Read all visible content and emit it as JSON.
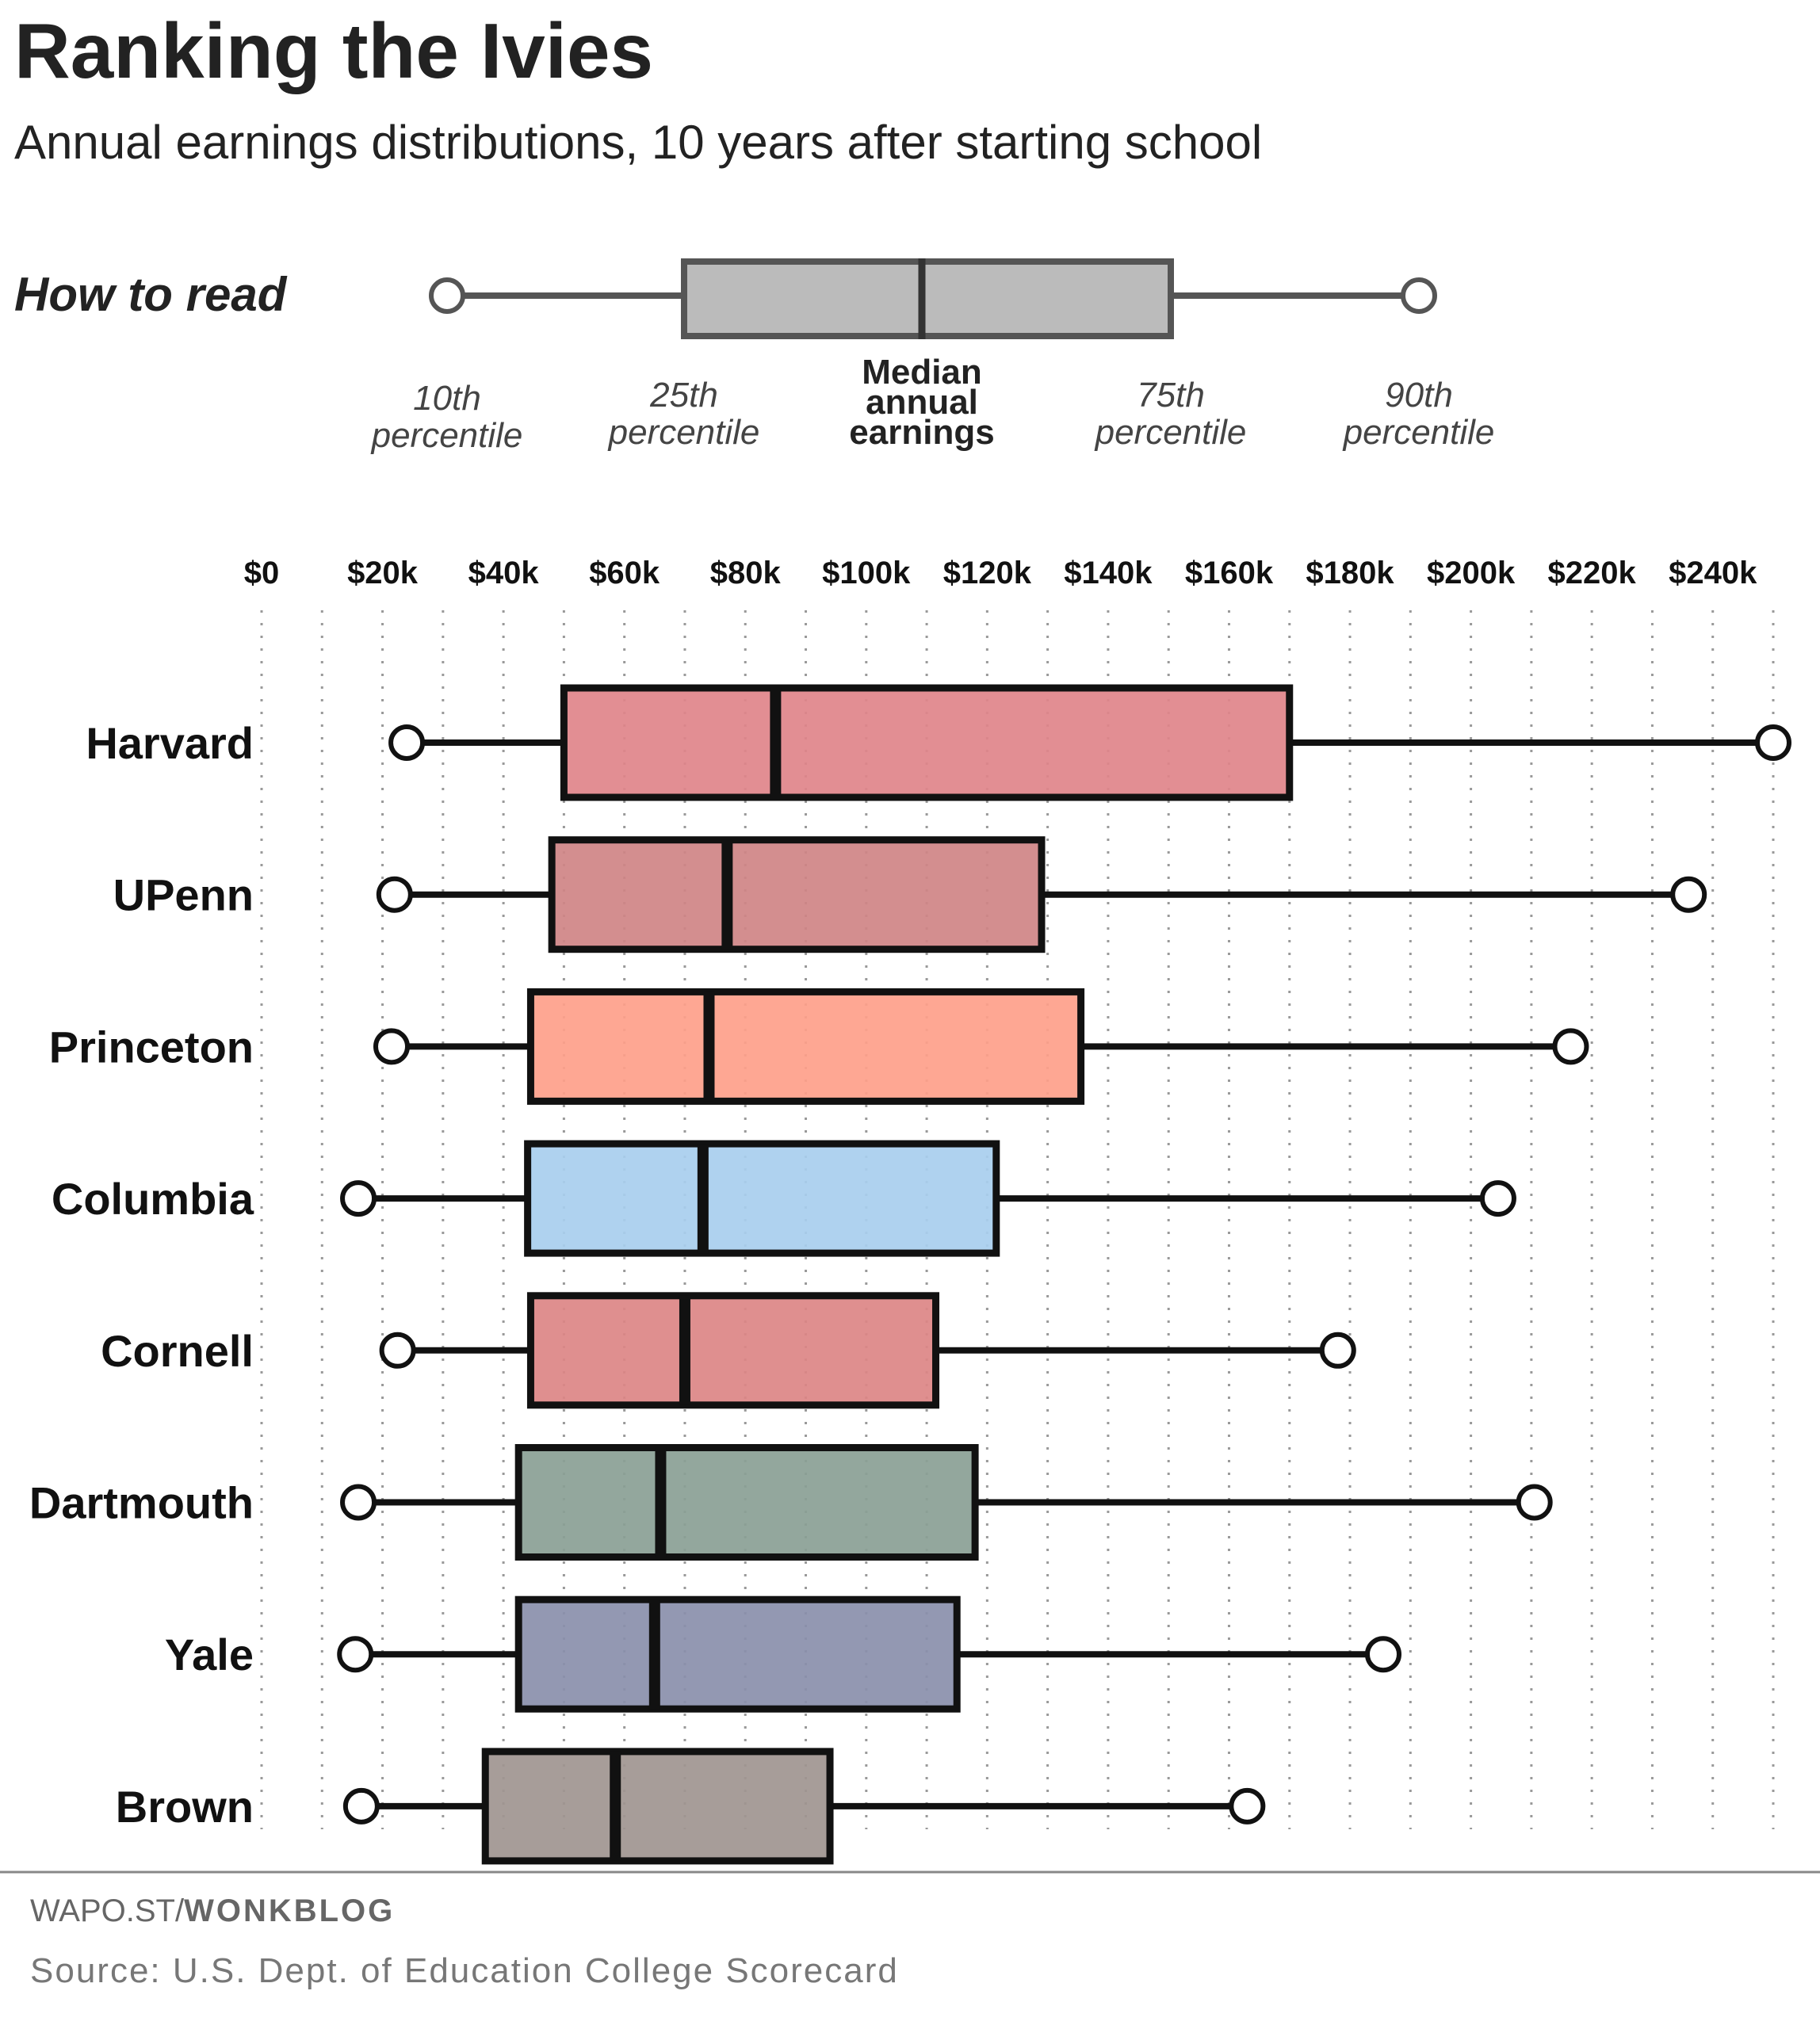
{
  "header": {
    "title": "Ranking the Ivies",
    "subtitle": "Annual earnings distributions, 10 years after starting school"
  },
  "how_to_read": {
    "label": "How to read",
    "p10": [
      "10th",
      "percentile"
    ],
    "p25": [
      "25th",
      "percentile"
    ],
    "median": [
      "Median",
      "annual",
      "earnings"
    ],
    "p75": [
      "75th",
      "percentile"
    ],
    "p90": [
      "90th",
      "percentile"
    ]
  },
  "footer": {
    "site_prefix": "WAPO.ST/",
    "site_suffix": "WONKBLOG",
    "source": "Source: U.S. Dept. of Education College Scorecard"
  },
  "chart_data": {
    "type": "boxplot",
    "title": "Ranking the Ivies",
    "subtitle": "Annual earnings distributions, 10 years after starting school",
    "x_unit": "USD",
    "xlim": [
      0,
      250000
    ],
    "x_ticks": [
      {
        "value": 0,
        "label": "$0"
      },
      {
        "value": 20000,
        "label": "$20k"
      },
      {
        "value": 40000,
        "label": "$40k"
      },
      {
        "value": 60000,
        "label": "$60k"
      },
      {
        "value": 80000,
        "label": "$80k"
      },
      {
        "value": 100000,
        "label": "$100k"
      },
      {
        "value": 120000,
        "label": "$120k"
      },
      {
        "value": 140000,
        "label": "$140k"
      },
      {
        "value": 160000,
        "label": "$160k"
      },
      {
        "value": 180000,
        "label": "$180k"
      },
      {
        "value": 200000,
        "label": "$200k"
      },
      {
        "value": 220000,
        "label": "$220k"
      },
      {
        "value": 240000,
        "label": "$240k"
      }
    ],
    "grid": "vertical dotted",
    "schools": [
      {
        "name": "Harvard",
        "p10": 24000,
        "p25": 50000,
        "median": 85000,
        "p75": 170000,
        "p90": 250000,
        "color": "#df848a"
      },
      {
        "name": "UPenn",
        "p10": 22000,
        "p25": 48000,
        "median": 77000,
        "p75": 129000,
        "p90": 236000,
        "color": "#cf8486"
      },
      {
        "name": "Princeton",
        "p10": 21500,
        "p25": 44500,
        "median": 74000,
        "p75": 135500,
        "p90": 216500,
        "color": "#fea08a"
      },
      {
        "name": "Columbia",
        "p10": 16000,
        "p25": 44000,
        "median": 73000,
        "p75": 121500,
        "p90": 204500,
        "color": "#a8ceee"
      },
      {
        "name": "Cornell",
        "p10": 22500,
        "p25": 44500,
        "median": 70000,
        "p75": 111500,
        "p90": 178000,
        "color": "#dc8586"
      },
      {
        "name": "Dartmouth",
        "p10": 16000,
        "p25": 42500,
        "median": 66000,
        "p75": 118000,
        "p90": 210500,
        "color": "#8a9f95"
      },
      {
        "name": "Yale",
        "p10": 15500,
        "p25": 42500,
        "median": 65000,
        "p75": 115000,
        "p90": 185500,
        "color": "#8a8fab"
      },
      {
        "name": "Brown",
        "p10": 16500,
        "p25": 37000,
        "median": 58500,
        "p75": 94000,
        "p90": 163000,
        "color": "#a09590"
      }
    ]
  }
}
